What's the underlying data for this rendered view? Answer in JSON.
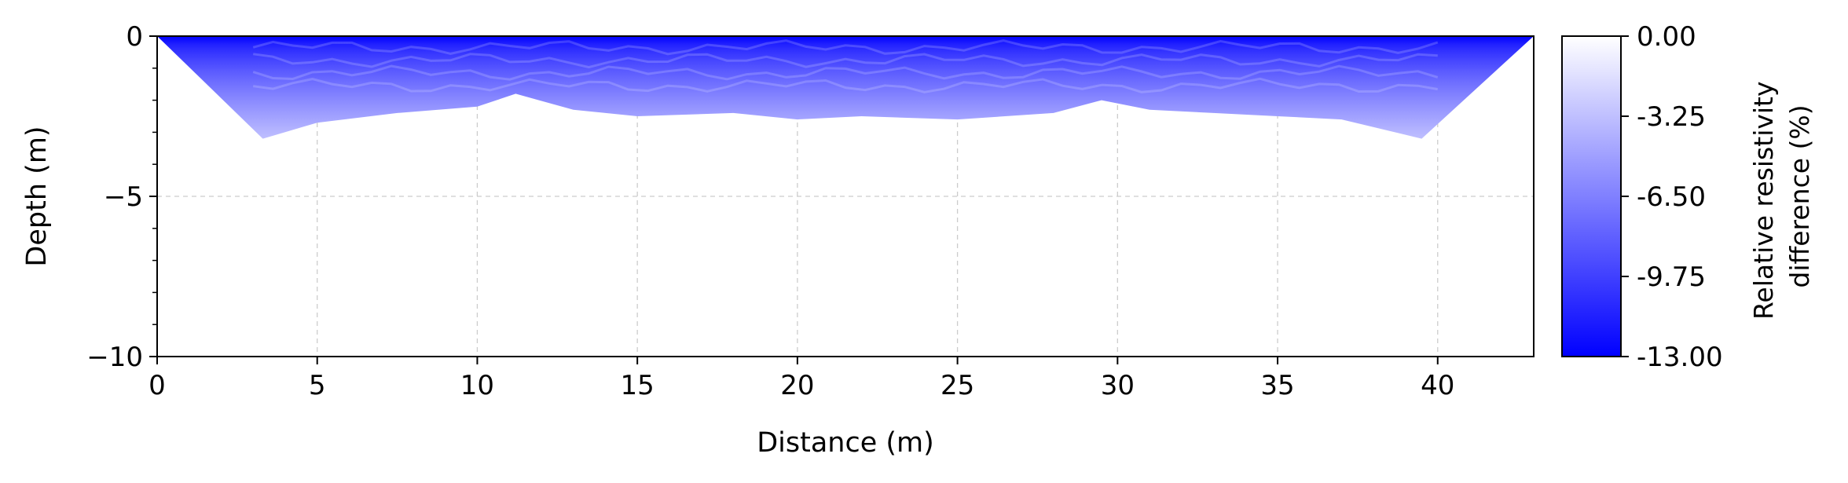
{
  "chart_data": {
    "type": "heatmap",
    "title": "",
    "xlabel": "Distance (m)",
    "ylabel": "Depth (m)",
    "xlim": [
      0,
      43
    ],
    "ylim": [
      -10,
      0
    ],
    "xticks": [
      0,
      5,
      10,
      15,
      20,
      25,
      30,
      35,
      40
    ],
    "xtick_labels": [
      "0",
      "5",
      "10",
      "15",
      "20",
      "25",
      "30",
      "35",
      "40"
    ],
    "yticks": [
      0,
      -5,
      -10
    ],
    "ytick_labels": [
      "0",
      "−5",
      "−10"
    ],
    "y_minor_ticks": [
      -1,
      -2,
      -3,
      -4,
      -6,
      -7,
      -8,
      -9
    ],
    "grid": true,
    "colorbar": {
      "label_lines": [
        "Relative resistivity",
        "difference (%)"
      ],
      "min": -13.0,
      "max": 0.0,
      "ticks": [
        0.0,
        -3.25,
        -6.5,
        -9.75,
        -13.0
      ],
      "tick_labels": [
        "0.00",
        "-3.25",
        "-6.50",
        "-9.75",
        "-13.00"
      ],
      "color_at_min": "#0000ff",
      "color_at_max": "#ffffff"
    },
    "data_region": {
      "description_boundary_x": [
        0,
        3.3,
        5,
        7.5,
        10,
        11.2,
        13,
        15,
        18,
        20,
        22,
        25,
        28,
        29.5,
        31,
        33,
        35,
        37,
        39.5,
        43
      ],
      "description_boundary_depth": [
        0,
        -3.2,
        -2.7,
        -2.4,
        -2.2,
        -1.8,
        -2.3,
        -2.5,
        -2.4,
        -2.6,
        -2.5,
        -2.6,
        -2.4,
        -2.0,
        -2.3,
        -2.4,
        -2.5,
        -2.6,
        -3.2,
        0
      ],
      "top_value_pct": -13.0,
      "bottom_value_pct": -3.25
    }
  }
}
